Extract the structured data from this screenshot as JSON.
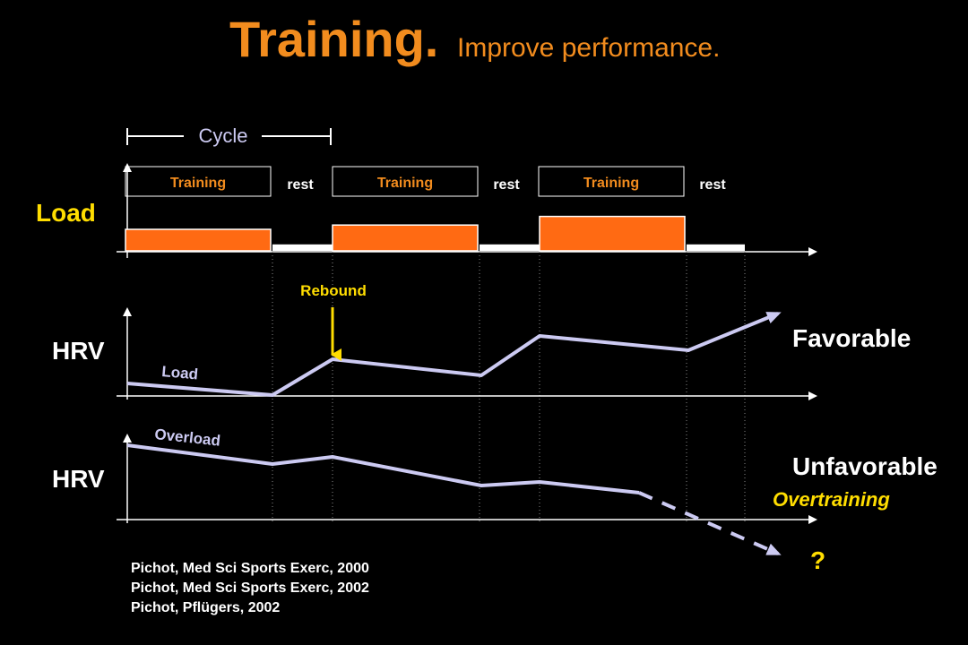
{
  "title": {
    "main": "Training.",
    "sub": "Improve performance."
  },
  "cycle_label": "Cycle",
  "load_panel": {
    "ylabel": "Load",
    "phases": [
      {
        "label": "Training",
        "type": "training"
      },
      {
        "label": "rest",
        "type": "rest"
      },
      {
        "label": "Training",
        "type": "training"
      },
      {
        "label": "rest",
        "type": "rest"
      },
      {
        "label": "Training",
        "type": "training"
      },
      {
        "label": "rest",
        "type": "rest"
      }
    ],
    "load_levels": [
      1,
      0.3,
      1.2,
      0.3,
      1.6,
      0.3
    ]
  },
  "hrv_favorable": {
    "ylabel": "HRV",
    "curve_label": "Load",
    "annotation": "Rebound",
    "outcome": "Favorable"
  },
  "hrv_unfavorable": {
    "ylabel": "HRV",
    "curve_label": "Overload",
    "outcome": "Unfavorable",
    "outcome_note": "Overtraining",
    "unknown": "?"
  },
  "references": [
    "Pichot, Med Sci Sports Exerc, 2000",
    "Pichot, Med Sci Sports Exerc, 2002",
    "Pichot, Pflügers, 2002"
  ],
  "colors": {
    "title": "#f28c1e",
    "training_bar": "#ff6a13",
    "rest_bar": "#ffffff",
    "curve": "#cccaf2",
    "annotation": "#ffdd00",
    "axis": "#ffffff"
  }
}
